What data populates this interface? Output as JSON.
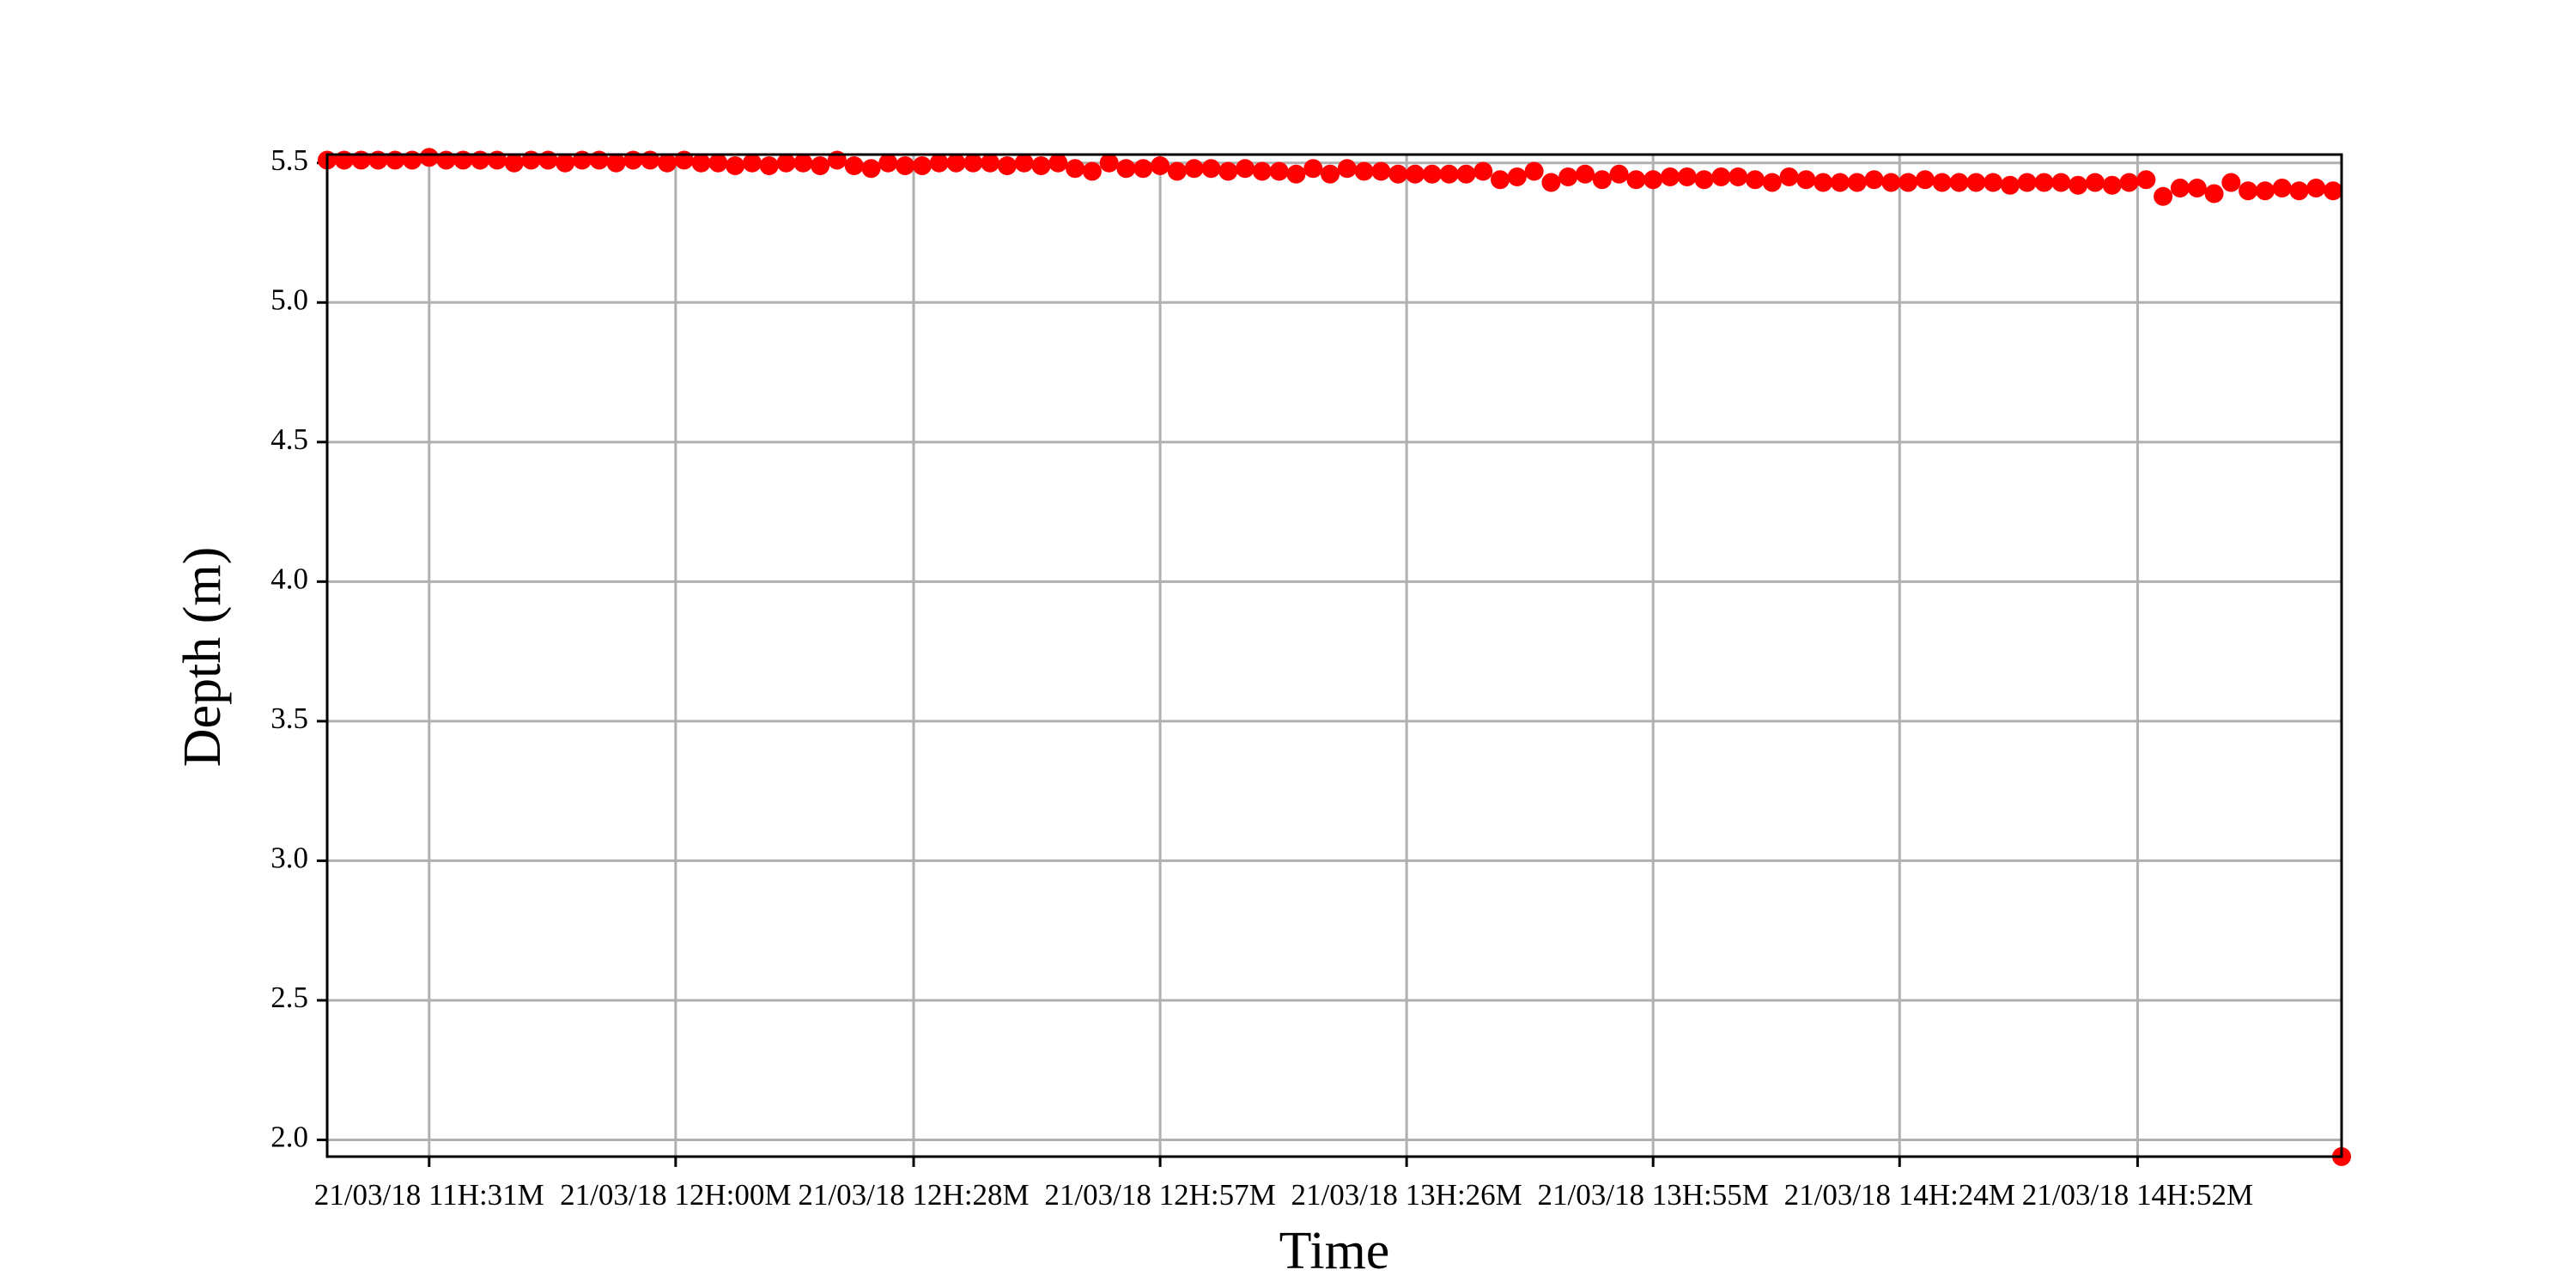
{
  "chart_data": {
    "type": "scatter",
    "xlabel": "Time",
    "ylabel": "Depth (m)",
    "color": "#ff0000",
    "grid": true,
    "xlim": [
      "11:19",
      "15:16"
    ],
    "ylim": [
      1.94,
      5.53
    ],
    "xticks": [
      {
        "value": "11:31",
        "label": "21/03/18 11H:31M"
      },
      {
        "value": "12:00",
        "label": "21/03/18 12H:00M"
      },
      {
        "value": "12:28",
        "label": "21/03/18 12H:28M"
      },
      {
        "value": "12:57",
        "label": "21/03/18 12H:57M"
      },
      {
        "value": "13:26",
        "label": "21/03/18 13H:26M"
      },
      {
        "value": "13:55",
        "label": "21/03/18 13H:55M"
      },
      {
        "value": "14:24",
        "label": "21/03/18 14H:24M"
      },
      {
        "value": "14:52",
        "label": "21/03/18 14H:52M"
      }
    ],
    "yticks": [
      {
        "value": 2,
        "label": "2.0"
      },
      {
        "value": 2.5,
        "label": "2.5"
      },
      {
        "value": 3,
        "label": "3.0"
      },
      {
        "value": 3.5,
        "label": "3.5"
      },
      {
        "value": 4,
        "label": "4.0"
      },
      {
        "value": 4.5,
        "label": "4.5"
      },
      {
        "value": 5,
        "label": "5.0"
      },
      {
        "value": 5.5,
        "label": "5.5"
      }
    ],
    "x": [
      "11:19",
      "11:21",
      "11:23",
      "11:25",
      "11:27",
      "11:29",
      "11:31",
      "11:33",
      "11:35",
      "11:37",
      "11:39",
      "11:41",
      "11:43",
      "11:45",
      "11:47",
      "11:49",
      "11:51",
      "11:53",
      "11:55",
      "11:57",
      "11:59",
      "12:01",
      "12:03",
      "12:05",
      "12:07",
      "12:09",
      "12:11",
      "12:13",
      "12:15",
      "12:17",
      "12:19",
      "12:21",
      "12:23",
      "12:25",
      "12:27",
      "12:29",
      "12:31",
      "12:33",
      "12:35",
      "12:37",
      "12:39",
      "12:41",
      "12:43",
      "12:45",
      "12:47",
      "12:49",
      "12:51",
      "12:53",
      "12:55",
      "12:57",
      "12:59",
      "13:01",
      "13:03",
      "13:05",
      "13:07",
      "13:09",
      "13:11",
      "13:13",
      "13:15",
      "13:17",
      "13:19",
      "13:21",
      "13:23",
      "13:25",
      "13:27",
      "13:29",
      "13:31",
      "13:33",
      "13:35",
      "13:37",
      "13:39",
      "13:41",
      "13:43",
      "13:45",
      "13:47",
      "13:49",
      "13:51",
      "13:53",
      "13:55",
      "13:57",
      "13:59",
      "14:01",
      "14:03",
      "14:05",
      "14:07",
      "14:09",
      "14:11",
      "14:13",
      "14:15",
      "14:17",
      "14:19",
      "14:21",
      "14:23",
      "14:25",
      "14:27",
      "14:29",
      "14:31",
      "14:33",
      "14:35",
      "14:37",
      "14:39",
      "14:41",
      "14:43",
      "14:45",
      "14:47",
      "14:49",
      "14:51",
      "14:53",
      "14:55",
      "14:57",
      "14:59",
      "15:01",
      "15:03",
      "15:05",
      "15:07",
      "15:09",
      "15:11",
      "15:13",
      "15:15",
      "15:16"
    ],
    "values": [
      5.51,
      5.51,
      5.51,
      5.51,
      5.51,
      5.51,
      5.52,
      5.51,
      5.51,
      5.51,
      5.51,
      5.5,
      5.51,
      5.51,
      5.5,
      5.51,
      5.51,
      5.5,
      5.51,
      5.51,
      5.5,
      5.51,
      5.5,
      5.5,
      5.49,
      5.5,
      5.49,
      5.5,
      5.5,
      5.49,
      5.51,
      5.49,
      5.48,
      5.5,
      5.49,
      5.49,
      5.5,
      5.5,
      5.5,
      5.5,
      5.49,
      5.5,
      5.49,
      5.5,
      5.48,
      5.47,
      5.5,
      5.48,
      5.48,
      5.49,
      5.47,
      5.48,
      5.48,
      5.47,
      5.48,
      5.47,
      5.47,
      5.46,
      5.48,
      5.46,
      5.48,
      5.47,
      5.47,
      5.46,
      5.46,
      5.46,
      5.46,
      5.46,
      5.47,
      5.44,
      5.45,
      5.47,
      5.43,
      5.45,
      5.46,
      5.44,
      5.46,
      5.44,
      5.44,
      5.45,
      5.45,
      5.44,
      5.45,
      5.45,
      5.44,
      5.43,
      5.45,
      5.44,
      5.43,
      5.43,
      5.43,
      5.44,
      5.43,
      5.43,
      5.44,
      5.43,
      5.43,
      5.43,
      5.43,
      5.42,
      5.43,
      5.43,
      5.43,
      5.42,
      5.43,
      5.42,
      5.43,
      5.44,
      5.38,
      5.41,
      5.41,
      5.39,
      5.43,
      5.4,
      5.4,
      5.41,
      5.4,
      5.41,
      5.4,
      1.94
    ]
  }
}
